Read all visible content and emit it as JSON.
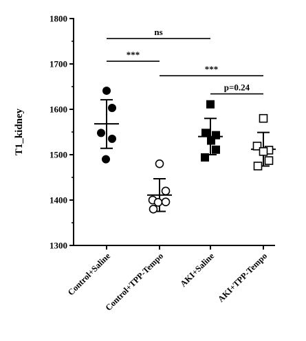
{
  "chart_data": {
    "type": "scatter",
    "ylabel": "T1_kidney",
    "xlabel": "",
    "ylim": [
      1300,
      1800
    ],
    "yticks": [
      1300,
      1400,
      1500,
      1600,
      1700,
      1800
    ],
    "categories": [
      "Control+Saline",
      "Control+TPP-Tempo",
      "AKI+Saline",
      "AKI+TPP-Tempo"
    ],
    "groups": [
      {
        "category": "Control+Saline",
        "marker": "circle-filled",
        "mean": 1568,
        "sd_upper": 1621,
        "sd_lower": 1514,
        "points": [
          1641,
          1548,
          1603,
          1535,
          1490
        ]
      },
      {
        "category": "Control+TPP-Tempo",
        "marker": "circle-open",
        "mean": 1411,
        "sd_upper": 1447,
        "sd_lower": 1375,
        "points": [
          1480,
          1420,
          1400,
          1395,
          1380,
          1396
        ]
      },
      {
        "category": "AKI+Saline",
        "marker": "square-filled",
        "mean": 1540,
        "sd_upper": 1580,
        "sd_lower": 1500,
        "points": [
          1611,
          1548,
          1543,
          1531,
          1511,
          1494
        ]
      },
      {
        "category": "AKI+TPP-Tempo",
        "marker": "square-open",
        "mean": 1512,
        "sd_upper": 1549,
        "sd_lower": 1475,
        "points": [
          1580,
          1519,
          1510,
          1507,
          1487,
          1475
        ]
      }
    ],
    "significance": [
      {
        "from": "Control+Saline",
        "to": "AKI+Saline",
        "label": "ns",
        "y": 1756
      },
      {
        "from": "Control+Saline",
        "to": "Control+TPP-Tempo",
        "label": "***",
        "y": 1706
      },
      {
        "from": "Control+TPP-Tempo",
        "to": "AKI+TPP-Tempo",
        "label": "***",
        "y": 1674
      },
      {
        "from": "AKI+Saline",
        "to": "AKI+TPP-Tempo",
        "label": "p=0.24",
        "y": 1634
      }
    ]
  }
}
